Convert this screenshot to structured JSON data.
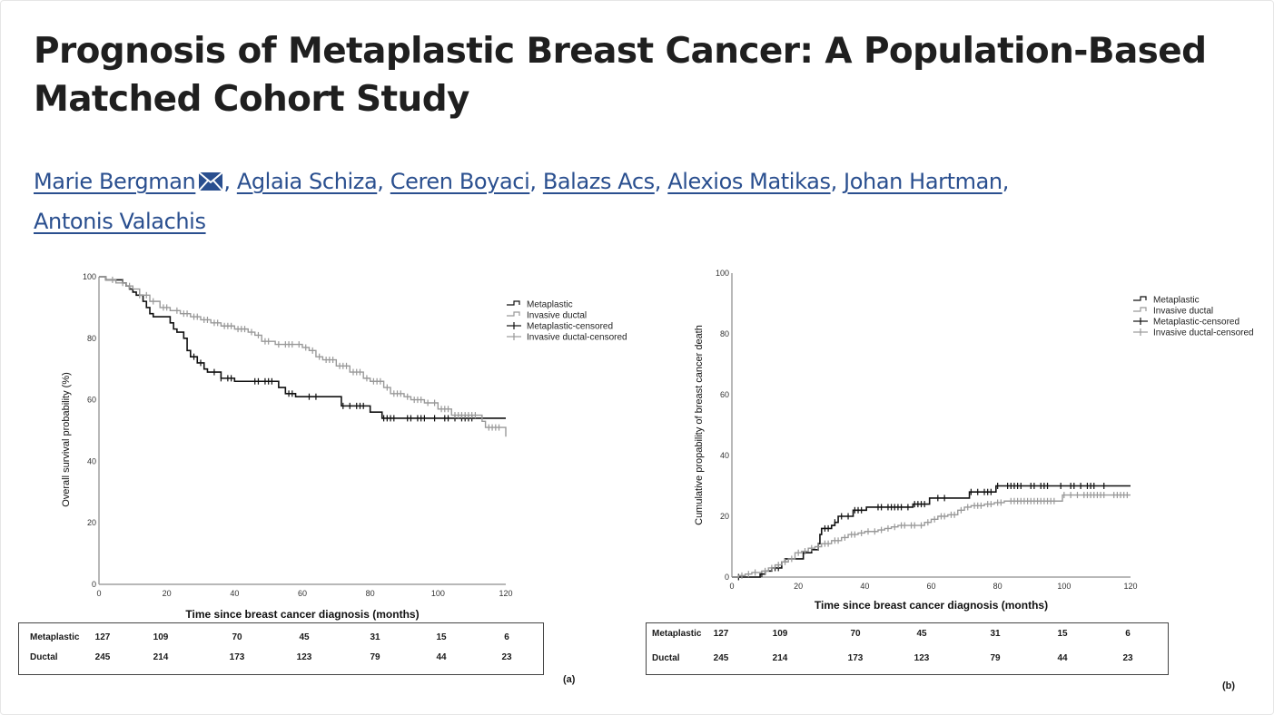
{
  "article": {
    "title": "Prognosis of Metaplastic Breast Cancer: A Population-Based Matched Cohort Study",
    "authors": [
      {
        "name": "Marie Bergman",
        "has_mail_icon": true
      },
      {
        "name": "Aglaia Schiza"
      },
      {
        "name": "Ceren Boyaci"
      },
      {
        "name": "Balazs Acs"
      },
      {
        "name": "Alexios Matikas"
      },
      {
        "name": "Johan Hartman"
      },
      {
        "name": "Antonis Valachis"
      }
    ],
    "separator": ",",
    "link_color": "#2a4f8f"
  },
  "chart_data": [
    {
      "type": "line",
      "subtype": "kaplan-meier-step",
      "panel_label": "(a)",
      "title": "",
      "xlabel": "Time since breast cancer diagnosis (months)",
      "ylabel": "Overall survival probability (%)",
      "xlim": [
        0,
        120
      ],
      "ylim": [
        0,
        100
      ],
      "xticks": [
        0,
        20,
        40,
        60,
        80,
        100,
        120
      ],
      "yticks": [
        0,
        20,
        40,
        60,
        80,
        100
      ],
      "grid": false,
      "legend_position": "top-right",
      "legend": [
        "Metaplastic",
        "Invasive ductal",
        "Metaplastic-censored",
        "Invasive ductal-censored"
      ],
      "series": [
        {
          "name": "Metaplastic",
          "color": "#111111",
          "points": [
            [
              0,
              100
            ],
            [
              2,
              99
            ],
            [
              7,
              98
            ],
            [
              8,
              97
            ],
            [
              9,
              96
            ],
            [
              10,
              95
            ],
            [
              11,
              94
            ],
            [
              13,
              92
            ],
            [
              14,
              90
            ],
            [
              15,
              88
            ],
            [
              16,
              87
            ],
            [
              21,
              85
            ],
            [
              22,
              83
            ],
            [
              23,
              82
            ],
            [
              25,
              80
            ],
            [
              26,
              76
            ],
            [
              27,
              74
            ],
            [
              29,
              72
            ],
            [
              31,
              70
            ],
            [
              32,
              69
            ],
            [
              36,
              67
            ],
            [
              40,
              66
            ],
            [
              52,
              66
            ],
            [
              53,
              64
            ],
            [
              55,
              62
            ],
            [
              58,
              61
            ],
            [
              71,
              61
            ],
            [
              71.5,
              58
            ],
            [
              79,
              58
            ],
            [
              80,
              56
            ],
            [
              83,
              56
            ],
            [
              83.5,
              54
            ],
            [
              120,
              54
            ]
          ],
          "censored": [
            28,
            30,
            34,
            36,
            38,
            39,
            46,
            47,
            49,
            50,
            51,
            56,
            57,
            62,
            64,
            72,
            74,
            76,
            77,
            78,
            84,
            85,
            86,
            87,
            91,
            92,
            94,
            95,
            96,
            99,
            102,
            103,
            105,
            107,
            108,
            109,
            110
          ]
        },
        {
          "name": "Invasive ductal",
          "color": "#999999",
          "points": [
            [
              0,
              100
            ],
            [
              2,
              99
            ],
            [
              5,
              98
            ],
            [
              8,
              97
            ],
            [
              10,
              96
            ],
            [
              12,
              94
            ],
            [
              15,
              92
            ],
            [
              18,
              90
            ],
            [
              21,
              89
            ],
            [
              24,
              88
            ],
            [
              27,
              87
            ],
            [
              30,
              86
            ],
            [
              33,
              85
            ],
            [
              36,
              84
            ],
            [
              40,
              83
            ],
            [
              44,
              82
            ],
            [
              46,
              81
            ],
            [
              48,
              79
            ],
            [
              52,
              78
            ],
            [
              58,
              78
            ],
            [
              60,
              77
            ],
            [
              62,
              76
            ],
            [
              64,
              74
            ],
            [
              66,
              73
            ],
            [
              70,
              71
            ],
            [
              74,
              69
            ],
            [
              78,
              67
            ],
            [
              80,
              66
            ],
            [
              84,
              64
            ],
            [
              86,
              62
            ],
            [
              90,
              61
            ],
            [
              92,
              60
            ],
            [
              96,
              59
            ],
            [
              100,
              57
            ],
            [
              104,
              55
            ],
            [
              112,
              55
            ],
            [
              113,
              53
            ],
            [
              114,
              51
            ],
            [
              119,
              51
            ],
            [
              120,
              48
            ]
          ],
          "censored": [
            4,
            7,
            9,
            12,
            14,
            16,
            19,
            20,
            23,
            25,
            26,
            28,
            29,
            31,
            32,
            34,
            35,
            37,
            38,
            39,
            41,
            42,
            43,
            45,
            47,
            49,
            50,
            53,
            55,
            56,
            57,
            59,
            61,
            63,
            65,
            67,
            68,
            69,
            71,
            72,
            73,
            75,
            76,
            77,
            79,
            81,
            82,
            83,
            85,
            87,
            88,
            89,
            91,
            93,
            94,
            95,
            97,
            99,
            101,
            102,
            103,
            105,
            106,
            107,
            108,
            109,
            110,
            111,
            115,
            116,
            117,
            118
          ]
        }
      ],
      "risk_table": {
        "rows": [
          {
            "label": "Metaplastic",
            "values": [
              127,
              109,
              70,
              45,
              31,
              15,
              6
            ]
          },
          {
            "label": "Ductal",
            "values": [
              245,
              214,
              173,
              123,
              79,
              44,
              23
            ]
          }
        ]
      }
    },
    {
      "type": "line",
      "subtype": "cumulative-incidence-step",
      "panel_label": "(b)",
      "title": "",
      "xlabel": "Time since breast cancer diagnosis (months)",
      "ylabel": "Cumulative propability of breast cancer death",
      "xlim": [
        0,
        120
      ],
      "ylim": [
        0,
        100
      ],
      "xticks": [
        0,
        20,
        40,
        60,
        80,
        100,
        120
      ],
      "yticks": [
        0,
        20,
        40,
        60,
        80,
        100
      ],
      "grid": false,
      "legend_position": "top-right",
      "legend": [
        "Metaplastic",
        "Invasive ductal",
        "Metaplastic-censored",
        "Invasive ductal-censored"
      ],
      "series": [
        {
          "name": "Metaplastic",
          "color": "#111111",
          "points": [
            [
              0,
              0
            ],
            [
              8,
              0
            ],
            [
              8.5,
              1
            ],
            [
              10,
              2
            ],
            [
              12,
              3
            ],
            [
              15,
              5
            ],
            [
              16,
              6
            ],
            [
              21,
              6
            ],
            [
              21.5,
              8
            ],
            [
              23,
              8
            ],
            [
              24,
              9
            ],
            [
              26,
              11
            ],
            [
              26.5,
              14
            ],
            [
              27,
              16
            ],
            [
              30,
              17
            ],
            [
              31,
              18
            ],
            [
              32,
              20
            ],
            [
              36,
              20
            ],
            [
              36.5,
              22
            ],
            [
              40,
              22
            ],
            [
              40.5,
              23
            ],
            [
              54,
              23
            ],
            [
              54.5,
              24
            ],
            [
              59,
              24
            ],
            [
              59.5,
              26
            ],
            [
              71,
              26
            ],
            [
              71.5,
              28
            ],
            [
              79,
              28
            ],
            [
              79.5,
              30
            ],
            [
              120,
              30
            ]
          ],
          "censored": [
            2,
            9,
            13,
            14,
            28,
            29,
            31,
            33,
            35,
            37,
            38,
            39,
            44,
            45,
            47,
            48,
            49,
            50,
            51,
            53,
            55,
            56,
            57,
            58,
            62,
            64,
            72,
            74,
            76,
            77,
            78,
            80,
            83,
            84,
            85,
            86,
            87,
            90,
            91,
            93,
            94,
            95,
            99,
            102,
            103,
            105,
            107,
            108,
            109,
            112
          ]
        },
        {
          "name": "Invasive ductal",
          "color": "#999999",
          "points": [
            [
              0,
              0
            ],
            [
              2,
              0.5
            ],
            [
              4,
              1
            ],
            [
              6,
              1.5
            ],
            [
              9,
              2
            ],
            [
              11,
              3
            ],
            [
              13,
              4
            ],
            [
              15,
              5
            ],
            [
              17,
              6
            ],
            [
              19,
              8
            ],
            [
              21,
              8.5
            ],
            [
              23,
              9.5
            ],
            [
              25,
              10
            ],
            [
              27,
              11
            ],
            [
              30,
              12
            ],
            [
              33,
              13
            ],
            [
              35,
              14
            ],
            [
              38,
              14.5
            ],
            [
              40,
              15
            ],
            [
              44,
              15.5
            ],
            [
              46,
              16
            ],
            [
              48,
              16.5
            ],
            [
              50,
              17
            ],
            [
              56,
              17
            ],
            [
              58,
              18
            ],
            [
              60,
              19
            ],
            [
              62,
              20
            ],
            [
              65,
              20.5
            ],
            [
              68,
              22
            ],
            [
              70,
              23
            ],
            [
              72,
              23.5
            ],
            [
              76,
              24
            ],
            [
              79,
              24.5
            ],
            [
              82,
              25
            ],
            [
              99,
              25
            ],
            [
              99.5,
              27
            ],
            [
              120,
              27
            ]
          ],
          "censored": [
            3,
            5,
            7,
            10,
            12,
            14,
            16,
            18,
            20,
            22,
            24,
            26,
            28,
            29,
            31,
            32,
            34,
            36,
            37,
            39,
            41,
            43,
            45,
            47,
            49,
            51,
            52,
            54,
            55,
            57,
            59,
            61,
            63,
            64,
            66,
            67,
            69,
            71,
            73,
            74,
            75,
            77,
            78,
            80,
            81,
            84,
            85,
            86,
            87,
            88,
            89,
            90,
            91,
            92,
            93,
            94,
            95,
            96,
            97,
            100,
            102,
            104,
            106,
            107,
            108,
            109,
            110,
            111,
            112,
            115,
            116,
            117,
            118,
            119
          ]
        }
      ],
      "risk_table": {
        "rows": [
          {
            "label": "Metaplastic",
            "values": [
              127,
              109,
              70,
              45,
              31,
              15,
              6
            ]
          },
          {
            "label": "Ductal",
            "values": [
              245,
              214,
              173,
              123,
              79,
              44,
              23
            ]
          }
        ]
      }
    }
  ]
}
